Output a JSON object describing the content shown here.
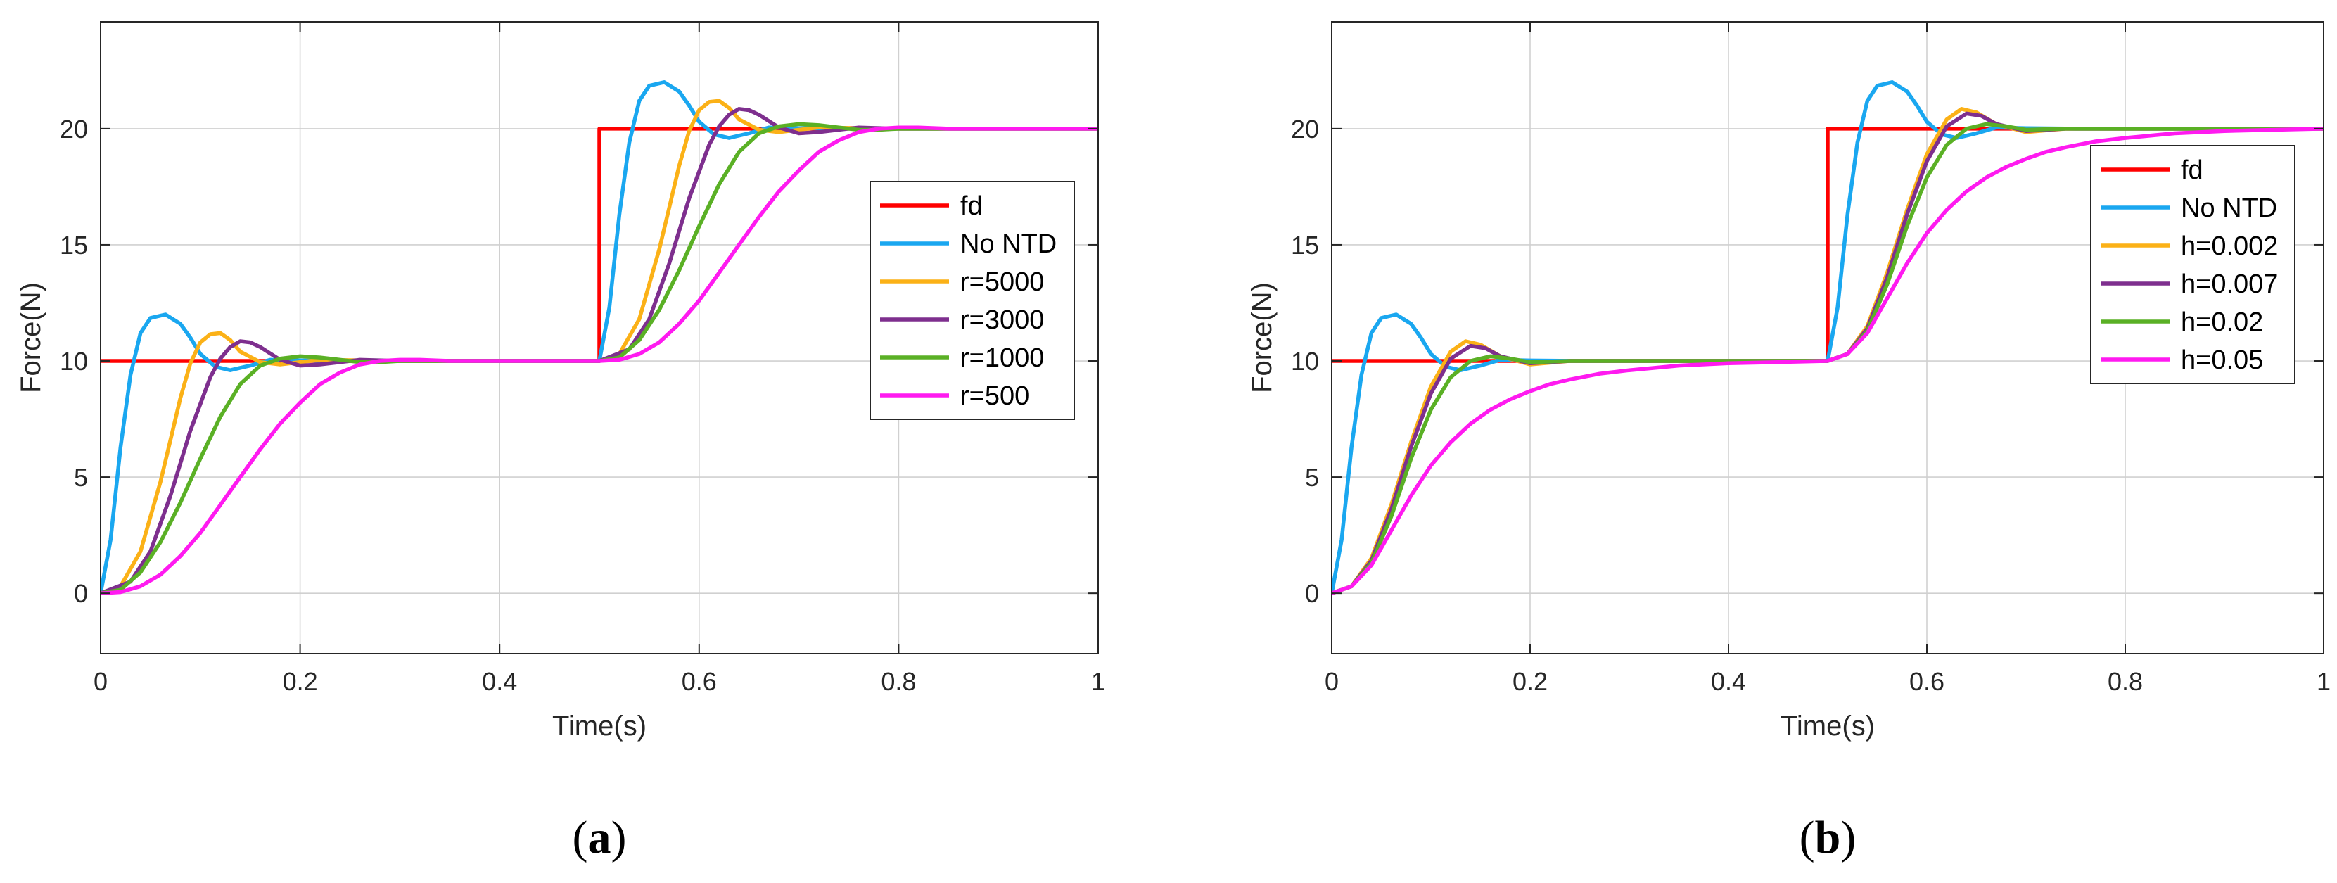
{
  "chart_data": [
    {
      "type": "line",
      "panel_label": "a",
      "caption_open": "(",
      "caption_close": ")",
      "xlabel": "Time(s)",
      "ylabel": "Force(N)",
      "xlim": [
        0,
        1
      ],
      "ylim": [
        -2.6,
        24.6
      ],
      "xticks": [
        0,
        0.2,
        0.4,
        0.6,
        0.8,
        1
      ],
      "xtick_labels": [
        "0",
        "0.2",
        "0.4",
        "0.6",
        "0.8",
        "1"
      ],
      "yticks": [
        0,
        5,
        10,
        15,
        20
      ],
      "ytick_labels": [
        "0",
        "5",
        "10",
        "15",
        "20"
      ],
      "grid": true,
      "legend_position": "right",
      "series": [
        {
          "name": "fd",
          "color": "#ff0000",
          "x": [
            0,
            0.5,
            0.5,
            1
          ],
          "y": [
            10,
            10,
            20,
            20
          ]
        },
        {
          "name": "No NTD",
          "color": "#1aa7f0",
          "x": [
            0,
            0.01,
            0.02,
            0.03,
            0.04,
            0.05,
            0.065,
            0.08,
            0.09,
            0.1,
            0.115,
            0.13,
            0.15,
            0.17,
            0.2,
            0.25,
            0.3,
            0.5,
            0.51,
            0.52,
            0.53,
            0.54,
            0.55,
            0.565,
            0.58,
            0.59,
            0.6,
            0.615,
            0.63,
            0.65,
            0.67,
            0.7,
            0.75,
            0.8,
            1
          ],
          "y": [
            0,
            2.3,
            6.3,
            9.4,
            11.2,
            11.85,
            12.0,
            11.6,
            11.0,
            10.3,
            9.75,
            9.6,
            9.8,
            10.05,
            10.02,
            10.0,
            10.0,
            10.0,
            12.3,
            16.3,
            19.4,
            21.2,
            21.85,
            22.0,
            21.6,
            21.0,
            20.3,
            19.75,
            19.6,
            19.8,
            20.05,
            20.02,
            20.0,
            20.0,
            20.0
          ]
        },
        {
          "name": "r=5000",
          "color": "#fbb117",
          "x": [
            0,
            0.02,
            0.04,
            0.06,
            0.07,
            0.08,
            0.09,
            0.1,
            0.11,
            0.12,
            0.13,
            0.14,
            0.16,
            0.18,
            0.22,
            0.3,
            0.5,
            0.52,
            0.54,
            0.56,
            0.57,
            0.58,
            0.59,
            0.6,
            0.61,
            0.62,
            0.63,
            0.64,
            0.66,
            0.68,
            0.72,
            0.8,
            1
          ],
          "y": [
            0,
            0.3,
            1.8,
            4.8,
            6.6,
            8.4,
            9.9,
            10.8,
            11.15,
            11.2,
            10.9,
            10.4,
            9.95,
            9.85,
            10.05,
            10.0,
            10.0,
            10.3,
            11.8,
            14.8,
            16.6,
            18.4,
            19.9,
            20.8,
            21.15,
            21.2,
            20.9,
            20.4,
            19.95,
            19.85,
            20.05,
            20.0,
            20.0
          ]
        },
        {
          "name": "r=3000",
          "color": "#7e2f8e",
          "x": [
            0,
            0.03,
            0.05,
            0.07,
            0.09,
            0.11,
            0.12,
            0.13,
            0.14,
            0.15,
            0.16,
            0.18,
            0.2,
            0.22,
            0.26,
            0.3,
            0.5,
            0.53,
            0.55,
            0.57,
            0.59,
            0.61,
            0.62,
            0.63,
            0.64,
            0.65,
            0.66,
            0.68,
            0.7,
            0.72,
            0.76,
            0.8,
            1
          ],
          "y": [
            0,
            0.5,
            1.8,
            4.2,
            7.0,
            9.3,
            10.1,
            10.6,
            10.85,
            10.8,
            10.6,
            10.05,
            9.8,
            9.85,
            10.05,
            10.0,
            10.0,
            10.5,
            11.8,
            14.2,
            17.0,
            19.3,
            20.1,
            20.6,
            20.85,
            20.8,
            20.6,
            20.05,
            19.8,
            19.85,
            20.05,
            20.0,
            20.0
          ]
        },
        {
          "name": "r=1000",
          "color": "#5ab025",
          "x": [
            0,
            0.02,
            0.04,
            0.06,
            0.08,
            0.1,
            0.12,
            0.14,
            0.16,
            0.18,
            0.2,
            0.22,
            0.24,
            0.26,
            0.28,
            0.3,
            0.5,
            0.52,
            0.54,
            0.56,
            0.58,
            0.6,
            0.62,
            0.64,
            0.66,
            0.68,
            0.7,
            0.72,
            0.74,
            0.76,
            0.78,
            0.8,
            1
          ],
          "y": [
            0,
            0.15,
            0.9,
            2.2,
            3.9,
            5.8,
            7.6,
            9.0,
            9.8,
            10.1,
            10.2,
            10.15,
            10.05,
            9.95,
            9.95,
            10.0,
            10.0,
            10.15,
            10.9,
            12.2,
            13.9,
            15.8,
            17.6,
            19.0,
            19.8,
            20.1,
            20.2,
            20.15,
            20.05,
            19.95,
            19.95,
            20.0,
            20.0
          ]
        },
        {
          "name": "r=500",
          "color": "#ff1af0",
          "x": [
            0,
            0.02,
            0.04,
            0.06,
            0.08,
            0.1,
            0.12,
            0.14,
            0.16,
            0.18,
            0.2,
            0.22,
            0.24,
            0.26,
            0.28,
            0.3,
            0.32,
            0.35,
            0.5,
            0.52,
            0.54,
            0.56,
            0.58,
            0.6,
            0.62,
            0.64,
            0.66,
            0.68,
            0.7,
            0.72,
            0.74,
            0.76,
            0.78,
            0.8,
            0.82,
            0.85,
            1
          ],
          "y": [
            0,
            0.05,
            0.3,
            0.8,
            1.6,
            2.6,
            3.8,
            5.0,
            6.2,
            7.3,
            8.2,
            9.0,
            9.5,
            9.85,
            10.0,
            10.05,
            10.05,
            10.0,
            10.0,
            10.05,
            10.3,
            10.8,
            11.6,
            12.6,
            13.8,
            15.0,
            16.2,
            17.3,
            18.2,
            19.0,
            19.5,
            19.85,
            20.0,
            20.05,
            20.05,
            20.0,
            20.0
          ]
        }
      ]
    },
    {
      "type": "line",
      "panel_label": "b",
      "caption_open": "(",
      "caption_close": ")",
      "xlabel": "Time(s)",
      "ylabel": "Force(N)",
      "xlim": [
        0,
        1
      ],
      "ylim": [
        -2.6,
        24.6
      ],
      "xticks": [
        0,
        0.2,
        0.4,
        0.6,
        0.8,
        1
      ],
      "xtick_labels": [
        "0",
        "0.2",
        "0.4",
        "0.6",
        "0.8",
        "1"
      ],
      "yticks": [
        0,
        5,
        10,
        15,
        20
      ],
      "ytick_labels": [
        "0",
        "5",
        "10",
        "15",
        "20"
      ],
      "grid": true,
      "legend_position": "top-right",
      "series": [
        {
          "name": "fd",
          "color": "#ff0000",
          "x": [
            0,
            0.5,
            0.5,
            1
          ],
          "y": [
            10,
            10,
            20,
            20
          ]
        },
        {
          "name": "No NTD",
          "color": "#1aa7f0",
          "x": [
            0,
            0.01,
            0.02,
            0.03,
            0.04,
            0.05,
            0.065,
            0.08,
            0.09,
            0.1,
            0.115,
            0.13,
            0.15,
            0.17,
            0.2,
            0.25,
            0.3,
            0.5,
            0.51,
            0.52,
            0.53,
            0.54,
            0.55,
            0.565,
            0.58,
            0.59,
            0.6,
            0.615,
            0.63,
            0.65,
            0.67,
            0.7,
            0.75,
            0.8,
            1
          ],
          "y": [
            0,
            2.3,
            6.3,
            9.4,
            11.2,
            11.85,
            12.0,
            11.6,
            11.0,
            10.3,
            9.75,
            9.6,
            9.8,
            10.05,
            10.02,
            10.0,
            10.0,
            10.0,
            12.3,
            16.3,
            19.4,
            21.2,
            21.85,
            22.0,
            21.6,
            21.0,
            20.3,
            19.75,
            19.6,
            19.8,
            20.05,
            20.02,
            20.0,
            20.0,
            20.0
          ]
        },
        {
          "name": "h=0.002",
          "color": "#fbb117",
          "x": [
            0,
            0.02,
            0.04,
            0.06,
            0.08,
            0.1,
            0.12,
            0.135,
            0.15,
            0.17,
            0.2,
            0.24,
            0.3,
            0.5,
            0.52,
            0.54,
            0.56,
            0.58,
            0.6,
            0.62,
            0.635,
            0.65,
            0.67,
            0.7,
            0.74,
            0.8,
            1
          ],
          "y": [
            0,
            0.3,
            1.5,
            3.8,
            6.5,
            8.9,
            10.4,
            10.85,
            10.7,
            10.2,
            9.85,
            10.0,
            10.0,
            10.0,
            10.3,
            11.5,
            13.8,
            16.5,
            18.9,
            20.4,
            20.85,
            20.7,
            20.2,
            19.85,
            20.0,
            20.0,
            20.0
          ]
        },
        {
          "name": "h=0.007",
          "color": "#7e2f8e",
          "x": [
            0,
            0.02,
            0.04,
            0.06,
            0.08,
            0.1,
            0.12,
            0.14,
            0.155,
            0.17,
            0.2,
            0.24,
            0.3,
            0.5,
            0.52,
            0.54,
            0.56,
            0.58,
            0.6,
            0.62,
            0.64,
            0.655,
            0.67,
            0.7,
            0.74,
            0.8,
            1
          ],
          "y": [
            0,
            0.3,
            1.4,
            3.6,
            6.3,
            8.6,
            10.1,
            10.65,
            10.55,
            10.2,
            9.9,
            10.0,
            10.0,
            10.0,
            10.3,
            11.4,
            13.6,
            16.3,
            18.6,
            20.1,
            20.65,
            20.55,
            20.2,
            19.9,
            20.0,
            20.0,
            20.0
          ]
        },
        {
          "name": "h=0.02",
          "color": "#5ab025",
          "x": [
            0,
            0.02,
            0.04,
            0.06,
            0.08,
            0.1,
            0.12,
            0.14,
            0.16,
            0.18,
            0.2,
            0.24,
            0.3,
            0.5,
            0.52,
            0.54,
            0.56,
            0.58,
            0.6,
            0.62,
            0.64,
            0.66,
            0.68,
            0.7,
            0.74,
            0.8,
            1
          ],
          "y": [
            0,
            0.3,
            1.3,
            3.3,
            5.8,
            7.9,
            9.3,
            10.0,
            10.2,
            10.1,
            9.95,
            10.0,
            10.0,
            10.0,
            10.3,
            11.3,
            13.3,
            15.8,
            17.9,
            19.3,
            20.0,
            20.2,
            20.1,
            19.95,
            20.0,
            20.0,
            20.0
          ]
        },
        {
          "name": "h=0.05",
          "color": "#ff1af0",
          "x": [
            0,
            0.02,
            0.04,
            0.06,
            0.08,
            0.1,
            0.12,
            0.14,
            0.16,
            0.18,
            0.2,
            0.22,
            0.24,
            0.27,
            0.3,
            0.35,
            0.4,
            0.45,
            0.5,
            0.52,
            0.54,
            0.56,
            0.58,
            0.6,
            0.62,
            0.64,
            0.66,
            0.68,
            0.7,
            0.72,
            0.74,
            0.77,
            0.8,
            0.85,
            0.9,
            1
          ],
          "y": [
            0,
            0.3,
            1.2,
            2.7,
            4.2,
            5.5,
            6.5,
            7.3,
            7.9,
            8.35,
            8.7,
            9.0,
            9.2,
            9.45,
            9.6,
            9.8,
            9.9,
            9.95,
            10.0,
            10.3,
            11.2,
            12.7,
            14.2,
            15.5,
            16.5,
            17.3,
            17.9,
            18.35,
            18.7,
            19.0,
            19.2,
            19.45,
            19.6,
            19.8,
            19.9,
            20.0
          ]
        }
      ]
    }
  ]
}
